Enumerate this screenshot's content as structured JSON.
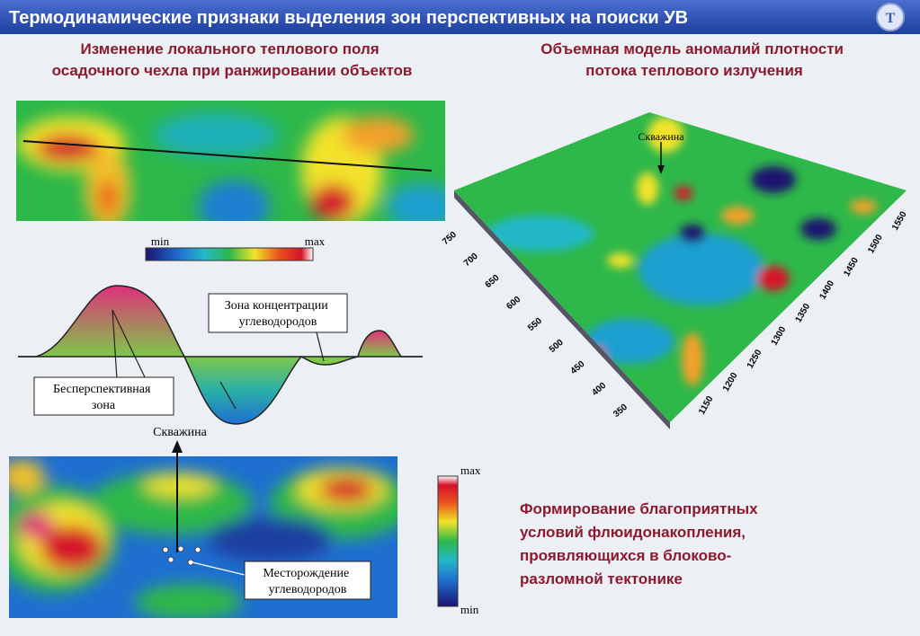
{
  "header": {
    "title": "Термодинамические признаки выделения  зон перспективных на поиски УВ"
  },
  "left_panel": {
    "heading": [
      "Изменение локального теплового поля",
      "осадочного чехла при ранжировании объектов"
    ],
    "colorbar": {
      "min": "min",
      "max": "max"
    },
    "profile": {
      "concentration_zone": [
        "Зона концентрации",
        "углеводородов"
      ],
      "barren_zone": [
        "Бесперспективная",
        "зона"
      ],
      "well": "Скважина"
    },
    "map": {
      "deposit": [
        "Месторождение",
        "углеводородов"
      ],
      "colorbar": {
        "max": "max",
        "min": "min"
      }
    }
  },
  "right_panel": {
    "heading": [
      "Объемная модель аномалий плотности",
      "потока теплового излучения"
    ],
    "model": {
      "well": "Скважина",
      "y_axis_ticks": [
        750,
        700,
        650,
        600,
        550,
        500,
        450,
        400,
        350
      ],
      "x_axis_ticks": [
        1150,
        1200,
        1250,
        1300,
        1350,
        1400,
        1450,
        1500,
        1550
      ]
    }
  },
  "conclusion": [
    "Формирование благоприятных",
    "условий флюидонакопления,",
    "проявляющихся в блоково-",
    "разломной тектонике"
  ]
}
